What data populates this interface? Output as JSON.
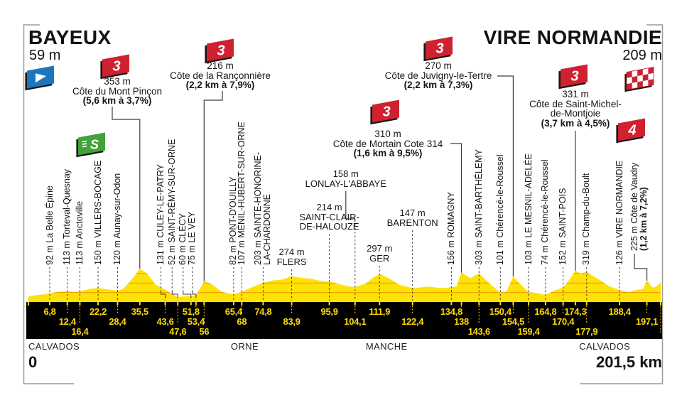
{
  "footer": {
    "start_label": "0",
    "total_label": "201,5 km"
  },
  "colors": {
    "profile_yellow": "#FFE205",
    "grid_orange": "#F0A800",
    "bar_black": "#000000",
    "bar_text_yellow": "#FFD905",
    "climb_red": "#CF2130",
    "start_blue": "#1C76BD",
    "sprint_green": "#3FA33A",
    "line_gray": "#3C3C3C",
    "frame_gray": "#9B9B9B",
    "text_dark": "#141414"
  },
  "chart_data": {
    "type": "area",
    "title": "Bayeux – Vire Normandie stage profile",
    "x_unit": "km",
    "y_unit": "m",
    "total_km": 201.5,
    "ylim": [
      0,
      380
    ],
    "y_gridlines_m": [
      100,
      200,
      300
    ],
    "start": {
      "name": "BAYEUX",
      "elevation_m": 59,
      "label": "59 m"
    },
    "finish": {
      "name": "VIRE NORMANDIE",
      "elevation_m": 209,
      "label": "209 m"
    },
    "sprint": {
      "km": 22.2,
      "symbol": "S"
    },
    "departments": [
      {
        "name": "CALVADOS",
        "km": 0
      },
      {
        "name": "ORNE",
        "km": 64.5
      },
      {
        "name": "MANCHE",
        "km": 107.5
      },
      {
        "name": "CALVADOS",
        "km": 175.5
      }
    ],
    "climbs": [
      {
        "km": 35.5,
        "category": "3",
        "elevation_label": "353 m",
        "name_lines": [
          "Côte du Mont Pinçon"
        ],
        "gradient": "(5,6 km à 3,7%)"
      },
      {
        "km": 56,
        "category": "3",
        "elevation_label": "216 m",
        "name_lines": [
          "Côte de la Rançonnière"
        ],
        "gradient": "(2,2 km à 7,9%)"
      },
      {
        "km": 138,
        "category": "3",
        "elevation_label": "310 m",
        "name_lines": [
          "Côte de Mortain Cote 314"
        ],
        "gradient": "(1,6 km à 9,5%)"
      },
      {
        "km": 154.5,
        "category": "3",
        "elevation_label": "270 m",
        "name_lines": [
          "Côte de Juvigny-le-Tertre"
        ],
        "gradient": "(2,2 km à 7,3%)"
      },
      {
        "km": 174.3,
        "category": "3",
        "elevation_label": "331 m",
        "name_lines": [
          "Côte de Saint-Michel-",
          "de-Montjoie"
        ],
        "gradient": "(3,7 km à 4,5%)"
      },
      {
        "km": 197.1,
        "category": "4",
        "rotated": true,
        "label_line": "225 m Côte de Vaudry",
        "gradient": "(1,2 km à 7,2%)"
      }
    ],
    "waypoints": [
      {
        "km": 3,
        "elev": 75,
        "shape": true
      },
      {
        "km": 6.8,
        "elev": 92,
        "label": "92 m La Belle Épine",
        "style": "v",
        "km_label": "6,8",
        "row": 1
      },
      {
        "km": 12.4,
        "elev": 113,
        "label": "113 m Torteval-Quesnay",
        "style": "v",
        "km_label": "12,4",
        "row": 2
      },
      {
        "km": 16.4,
        "elev": 113,
        "label": "113 m Anctoville",
        "style": "v",
        "km_label": "16,4",
        "row": 3
      },
      {
        "km": 22.2,
        "elev": 150,
        "label": "150 m VILLERS-BOCAGE",
        "style": "v",
        "km_label": "22,2",
        "row": 1
      },
      {
        "km": 28.4,
        "elev": 120,
        "label": "120 m Aunay-sur-Odon",
        "style": "v",
        "km_label": "28,4",
        "row": 2
      },
      {
        "km": 30.2,
        "elev": 140,
        "shape": true
      },
      {
        "km": 33,
        "elev": 240,
        "shape": true
      },
      {
        "km": 35.5,
        "elev": 353,
        "type": "climb",
        "km_label": "35,5",
        "row": 1
      },
      {
        "km": 38,
        "elev": 295,
        "shape": true
      },
      {
        "km": 40.5,
        "elev": 185,
        "shape": true
      },
      {
        "km": 43.6,
        "elev": 131,
        "label": "131 m CULEY-LE-PATRY",
        "style": "v",
        "km_label": "43,6",
        "row": 2
      },
      {
        "km": 47.6,
        "elev": 52,
        "label": "52 m SAINT-RÉMY-SUR-ORNE",
        "style": "v",
        "km_label": "47,6",
        "row": 3
      },
      {
        "km": 51.8,
        "elev": 60,
        "label": "60 m CLÉCY",
        "style": "v",
        "km_label": "51,8",
        "row": 1
      },
      {
        "km": 53.4,
        "elev": 75,
        "label": "75 m LE VEY",
        "style": "v",
        "km_label": "53,4",
        "row": 2
      },
      {
        "km": 56,
        "elev": 216,
        "type": "climb",
        "km_label": "56",
        "row": 3
      },
      {
        "km": 58,
        "elev": 198,
        "shape": true
      },
      {
        "km": 61.5,
        "elev": 110,
        "shape": true
      },
      {
        "km": 65.4,
        "elev": 82,
        "label": "82 m PONT-D'OUILLY",
        "style": "v",
        "km_label": "65,4",
        "row": 1
      },
      {
        "km": 68,
        "elev": 107,
        "label": "107 m MÉNIL-HUBERT-SUR-ORNE",
        "style": "v",
        "km_label": "68",
        "row": 2
      },
      {
        "km": 71.5,
        "elev": 160,
        "shape": true
      },
      {
        "km": 74.8,
        "elev": 203,
        "lines": [
          "203 m SAINTE-HONORINE-",
          "LA-CHARDONNE"
        ],
        "style": "v",
        "km_label": "74,8",
        "row": 1
      },
      {
        "km": 78,
        "elev": 228,
        "shape": true
      },
      {
        "km": 81,
        "elev": 238,
        "shape": true
      },
      {
        "km": 83.9,
        "elev": 274,
        "lines": [
          "274 m",
          "FLERS"
        ],
        "style": "h",
        "km_label": "83,9",
        "row": 2
      },
      {
        "km": 88,
        "elev": 252,
        "shape": true
      },
      {
        "km": 92,
        "elev": 232,
        "shape": true
      },
      {
        "km": 95.9,
        "elev": 214,
        "lines": [
          "214 m",
          "SAINT-CLAIR-",
          "DE-HALOUZE"
        ],
        "style": "h",
        "km_label": "95,9",
        "row": 1
      },
      {
        "km": 100,
        "elev": 180,
        "shape": true
      },
      {
        "km": 104.1,
        "elev": 158,
        "lines": [
          "158 m",
          "LONLAY-L'ABBAYE"
        ],
        "style": "h",
        "km_label": "104,1",
        "row": 2
      },
      {
        "km": 107.5,
        "elev": 195,
        "shape": true
      },
      {
        "km": 109.8,
        "elev": 255,
        "shape": true
      },
      {
        "km": 111.9,
        "elev": 297,
        "lines": [
          "297 m",
          "GER"
        ],
        "style": "h",
        "km_label": "111,9",
        "row": 1
      },
      {
        "km": 115,
        "elev": 248,
        "shape": true
      },
      {
        "km": 118.5,
        "elev": 178,
        "shape": true
      },
      {
        "km": 122.4,
        "elev": 147,
        "lines": [
          "147 m",
          "BARENTON"
        ],
        "style": "h",
        "km_label": "122,4",
        "row": 2
      },
      {
        "km": 127,
        "elev": 162,
        "shape": true
      },
      {
        "km": 131,
        "elev": 148,
        "shape": true
      },
      {
        "km": 134.8,
        "elev": 156,
        "label": "156 m ROMAGNY",
        "style": "v",
        "km_label": "134,8",
        "row": 1
      },
      {
        "km": 136.4,
        "elev": 165,
        "shape": true
      },
      {
        "km": 138,
        "elev": 310,
        "type": "climb",
        "km_label": "138",
        "row": 2
      },
      {
        "km": 140.8,
        "elev": 252,
        "shape": true
      },
      {
        "km": 143.6,
        "elev": 303,
        "label": "303 m SAINT-BARTHÉLEMY",
        "style": "v",
        "km_label": "143,6",
        "row": 3
      },
      {
        "km": 146.5,
        "elev": 210,
        "shape": true
      },
      {
        "km": 150.4,
        "elev": 101,
        "label": "101 m Chérencé-le-Roussel",
        "style": "v",
        "km_label": "150,4",
        "row": 1
      },
      {
        "km": 152.3,
        "elev": 112,
        "shape": true
      },
      {
        "km": 154.5,
        "elev": 270,
        "type": "climb",
        "km_label": "154,5",
        "row": 2
      },
      {
        "km": 157,
        "elev": 180,
        "shape": true
      },
      {
        "km": 159.4,
        "elev": 103,
        "label": "103 m LE MESNIL-ADELÉE",
        "style": "v",
        "km_label": "159,4",
        "row": 3
      },
      {
        "km": 162,
        "elev": 95,
        "shape": true
      },
      {
        "km": 164.8,
        "elev": 74,
        "label": "74 m Chérencé-le-Roussel",
        "style": "v",
        "km_label": "164,8",
        "row": 1
      },
      {
        "km": 167.5,
        "elev": 120,
        "shape": true
      },
      {
        "km": 170.4,
        "elev": 152,
        "label": "152 m SAINT-POIS",
        "style": "v",
        "km_label": "170,4",
        "row": 2
      },
      {
        "km": 172.5,
        "elev": 240,
        "shape": true
      },
      {
        "km": 174.3,
        "elev": 331,
        "type": "climb",
        "km_label": "174,3",
        "row": 1
      },
      {
        "km": 176,
        "elev": 300,
        "shape": true
      },
      {
        "km": 177.9,
        "elev": 319,
        "label": "319 m Champ-du-Boult",
        "style": "v",
        "km_label": "177,9",
        "row": 3
      },
      {
        "km": 182,
        "elev": 235,
        "shape": true
      },
      {
        "km": 185,
        "elev": 168,
        "shape": true
      },
      {
        "km": 188.4,
        "elev": 126,
        "label": "126 m VIRE NORMANDIE",
        "style": "v",
        "km_label": "188,4",
        "row": 1
      },
      {
        "km": 191.5,
        "elev": 105,
        "shape": true
      },
      {
        "km": 194,
        "elev": 130,
        "shape": true
      },
      {
        "km": 195.9,
        "elev": 139,
        "shape": true
      },
      {
        "km": 197.1,
        "elev": 225,
        "type": "climb",
        "km_label": "197,1",
        "row": 2
      },
      {
        "km": 199,
        "elev": 152,
        "shape": true
      },
      {
        "km": 200.2,
        "elev": 165,
        "shape": true
      }
    ]
  }
}
